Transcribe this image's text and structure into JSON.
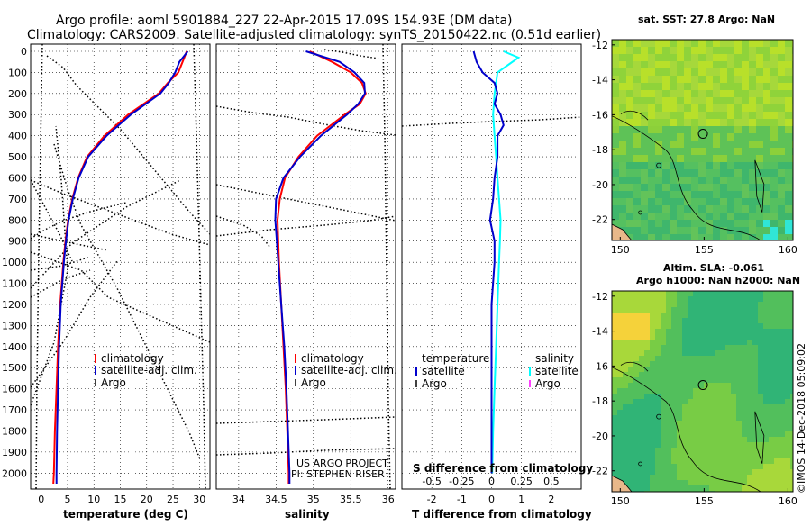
{
  "header": {
    "line1": "Argo profile: aoml 5901884_227 22-Apr-2015 17.09S 154.93E (DM data)",
    "line2": "Climatology: CARS2009. Satellite-adjusted climatology: synTS_20150422.nc (0.51d earlier)"
  },
  "credits": {
    "project": "US ARGO PROJECT",
    "pi": "PI: STEPHEN RISER"
  },
  "imos_stamp": "©IMOS 14-Dec-2018 05:09:02",
  "colors": {
    "climatology": "#ff0000",
    "satellite": "#0000cc",
    "argo": "#000000",
    "sal_satellite": "#00ffff",
    "sal_argo": "#ff00ff"
  },
  "chart_data": [
    {
      "type": "line",
      "name": "temperature-profile",
      "xlabel": "temperature (deg C)",
      "ylabel": "",
      "xlim": [
        -2,
        32
      ],
      "ylim": [
        2050,
        0
      ],
      "xticks": [
        "0",
        "5",
        "10",
        "15",
        "20",
        "25",
        "30"
      ],
      "xtick_values": [
        0,
        5,
        10,
        15,
        20,
        25,
        30
      ],
      "yticks": [
        "0",
        "100",
        "200",
        "300",
        "400",
        "500",
        "600",
        "700",
        "800",
        "900",
        "1000",
        "1100",
        "1200",
        "1300",
        "1400",
        "1500",
        "1600",
        "1700",
        "1800",
        "1900",
        "2000"
      ],
      "legend": [
        "climatology",
        "satellite-adj. clim.",
        "Argo"
      ],
      "series": [
        {
          "name": "climatology",
          "depth": [
            0,
            50,
            100,
            150,
            200,
            300,
            400,
            500,
            600,
            700,
            800,
            900,
            1000,
            1200,
            1400,
            1600,
            1800,
            2000,
            2050
          ],
          "values": [
            27.6,
            26.8,
            26.0,
            24.0,
            22.3,
            16.5,
            12.0,
            8.7,
            7.0,
            5.9,
            5.1,
            4.6,
            4.2,
            3.6,
            3.2,
            2.9,
            2.6,
            2.4,
            2.3
          ]
        },
        {
          "name": "satellite-adj. clim.",
          "depth": [
            0,
            50,
            100,
            150,
            200,
            300,
            400,
            500,
            600,
            700,
            800,
            900,
            1000,
            1200,
            1400,
            1600,
            1800,
            2000,
            2050
          ],
          "values": [
            27.8,
            26.2,
            25.4,
            24.2,
            22.6,
            17.0,
            12.4,
            8.9,
            7.1,
            6.0,
            5.2,
            4.7,
            4.3,
            3.7,
            3.4,
            3.2,
            3.0,
            2.9,
            2.9
          ]
        }
      ]
    },
    {
      "type": "line",
      "name": "salinity-profile",
      "xlabel": "salinity",
      "xlim": [
        33.7,
        36.1
      ],
      "ylim": [
        2050,
        0
      ],
      "xticks": [
        "34",
        "34.5",
        "35",
        "35.5",
        "36"
      ],
      "xtick_values": [
        34,
        34.5,
        35,
        35.5,
        36
      ],
      "legend": [
        "climatology",
        "satellite-adj. clim.",
        "Argo"
      ],
      "series": [
        {
          "name": "climatology",
          "depth": [
            0,
            50,
            100,
            150,
            200,
            250,
            300,
            400,
            500,
            600,
            700,
            800,
            900,
            1000,
            1200,
            1400,
            1600,
            1800,
            2000,
            2050
          ],
          "values": [
            34.95,
            35.25,
            35.5,
            35.65,
            35.7,
            35.62,
            35.42,
            35.05,
            34.8,
            34.62,
            34.55,
            34.52,
            34.53,
            34.54,
            34.57,
            34.6,
            34.63,
            34.65,
            34.67,
            34.67
          ]
        },
        {
          "name": "satellite-adj. clim.",
          "depth": [
            0,
            50,
            100,
            150,
            200,
            250,
            300,
            400,
            500,
            600,
            700,
            800,
            900,
            1000,
            1200,
            1400,
            1600,
            1800,
            2000,
            2050
          ],
          "values": [
            34.9,
            35.35,
            35.55,
            35.68,
            35.69,
            35.6,
            35.45,
            35.1,
            34.82,
            34.6,
            34.5,
            34.49,
            34.51,
            34.53,
            34.57,
            34.61,
            34.64,
            34.66,
            34.68,
            34.68
          ]
        }
      ]
    },
    {
      "type": "line",
      "name": "difference-profile",
      "xlabel": "T difference from climatology",
      "xlabel_top": "S difference from climatology",
      "xlim": [
        -3,
        3
      ],
      "ylim": [
        2050,
        0
      ],
      "xticks": [
        "-2",
        "-1",
        "0",
        "1",
        "2"
      ],
      "xtick_values": [
        -2,
        -1,
        0,
        1,
        2
      ],
      "sticks": [
        "-0.5",
        "-0.25",
        "0",
        "0.25",
        "0.5"
      ],
      "stick_values": [
        -2,
        -1,
        0,
        1,
        2
      ],
      "legend_t": {
        "title": "temperature",
        "items": [
          "satellite",
          "Argo"
        ]
      },
      "legend_s": {
        "title": "salinity",
        "items": [
          "satellite",
          "Argo"
        ]
      },
      "series": [
        {
          "name": "temperature satellite",
          "depth": [
            0,
            50,
            100,
            150,
            200,
            250,
            300,
            350,
            400,
            500,
            600,
            700,
            800,
            900,
            1000,
            1200,
            1400,
            1600,
            1800,
            2000
          ],
          "values": [
            -0.6,
            -0.5,
            -0.3,
            0.1,
            0.2,
            0.1,
            0.3,
            0.4,
            0.2,
            0.2,
            0.1,
            0.05,
            -0.05,
            0.1,
            0.1,
            0.0,
            0.0,
            0.0,
            0.0,
            0.0
          ]
        },
        {
          "name": "salinity satellite",
          "depth": [
            0,
            30,
            60,
            100,
            150,
            200,
            300,
            400,
            500,
            600,
            700,
            800,
            900,
            1000,
            1200,
            1400,
            1600,
            1800,
            2000
          ],
          "values": [
            0.4,
            0.9,
            0.6,
            0.2,
            0.15,
            0.1,
            0.05,
            0.1,
            0.15,
            0.2,
            0.25,
            0.3,
            0.28,
            0.25,
            0.2,
            0.15,
            0.1,
            0.05,
            0.02
          ]
        }
      ]
    },
    {
      "type": "heatmap",
      "name": "sst-map",
      "title": "sat. SST: 27.8 Argo: NaN",
      "xticks": [
        "150",
        "155",
        "160"
      ],
      "xtick_values": [
        150,
        155,
        160
      ],
      "yticks": [
        "-12",
        "-14",
        "-16",
        "-18",
        "-20",
        "-22"
      ],
      "ytick_values": [
        -12,
        -14,
        -16,
        -18,
        -20,
        -22
      ],
      "xlim": [
        149.5,
        160.3
      ],
      "ylim": [
        -23.2,
        -11.7
      ],
      "float_position": [
        154.93,
        -17.09
      ]
    },
    {
      "type": "heatmap",
      "name": "sla-map",
      "title": "Altim. SLA: -0.061",
      "subtitle": "Argo h1000: NaN h2000: NaN",
      "xticks": [
        "150",
        "155",
        "160"
      ],
      "xtick_values": [
        150,
        155,
        160
      ],
      "yticks": [
        "-12",
        "-14",
        "-16",
        "-18",
        "-20",
        "-22"
      ],
      "ytick_values": [
        -12,
        -14,
        -16,
        -18,
        -20,
        -22
      ],
      "xlim": [
        149.5,
        160.3
      ],
      "ylim": [
        -23.2,
        -11.7
      ],
      "float_position": [
        154.93,
        -17.09
      ]
    }
  ]
}
